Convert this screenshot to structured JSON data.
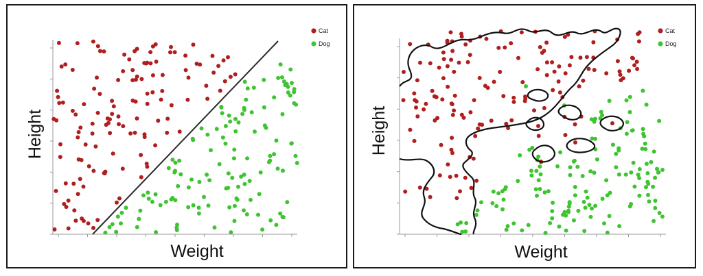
{
  "chart_data": [
    {
      "type": "scatter",
      "title": "",
      "xlabel": "Weight",
      "ylabel": "Height",
      "grid": false,
      "legend_position": "top-right",
      "series": [
        {
          "name": "Cat",
          "color": "#b01e1e"
        },
        {
          "name": "Dog",
          "color": "#3ec431"
        }
      ],
      "decision_boundary": "straight line"
    },
    {
      "type": "scatter",
      "title": "",
      "xlabel": "Weight",
      "ylabel": "Height",
      "grid": false,
      "legend_position": "top-right",
      "series": [
        {
          "name": "Cat",
          "color": "#b01e1e"
        },
        {
          "name": "Dog",
          "color": "#3ec431"
        }
      ],
      "decision_boundary": "curved, with small enclosed islands"
    }
  ]
}
